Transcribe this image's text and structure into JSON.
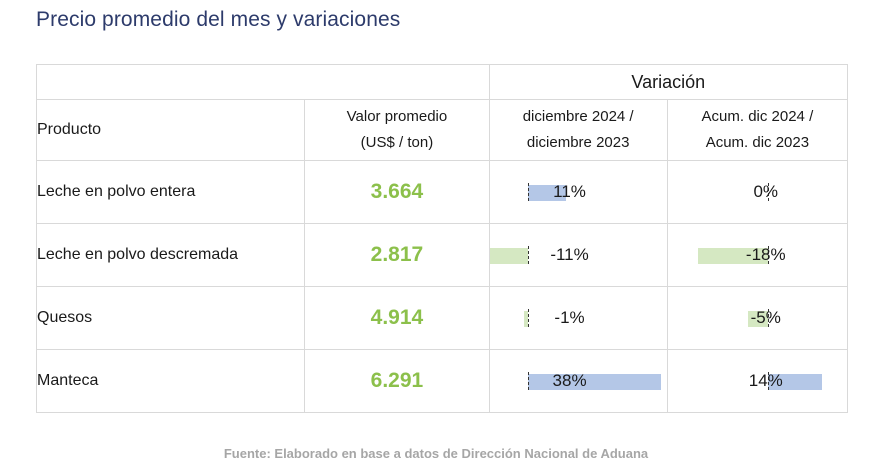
{
  "title": "Precio promedio del mes y variaciones",
  "header": {
    "variacion": "Variación",
    "producto": "Producto",
    "valor_line1": "Valor promedio",
    "valor_line2": "(US$ / ton)",
    "v1_line1": "diciembre 2024 /",
    "v1_line2": "diciembre 2023",
    "v2_line1": "Acum. dic 2024 /",
    "v2_line2": "Acum. dic 2023"
  },
  "rows": [
    {
      "producto": "Leche en polvo entera",
      "valor": "3.664",
      "var_mensual": "11%",
      "var_acum": "0%",
      "var_mensual_num": 11,
      "var_acum_num": 0
    },
    {
      "producto": "Leche en polvo descremada",
      "valor": "2.817",
      "var_mensual": "-11%",
      "var_acum": "-18%",
      "var_mensual_num": -11,
      "var_acum_num": -18
    },
    {
      "producto": "Quesos",
      "valor": "4.914",
      "var_mensual": "-1%",
      "var_acum": "-5%",
      "var_mensual_num": -1,
      "var_acum_num": -5
    },
    {
      "producto": "Manteca",
      "valor": "6.291",
      "var_mensual": "38%",
      "var_acum": "14%",
      "var_mensual_num": 38,
      "var_acum_num": 14
    }
  ],
  "colors": {
    "positive_bar": "#b4c7e7",
    "negative_bar": "#d5e8c2",
    "value_text": "#8cc04b",
    "title_text": "#2d3b6b"
  },
  "source": "Fuente: Elaborado en base a datos de Dirección Nacional de Aduana"
}
